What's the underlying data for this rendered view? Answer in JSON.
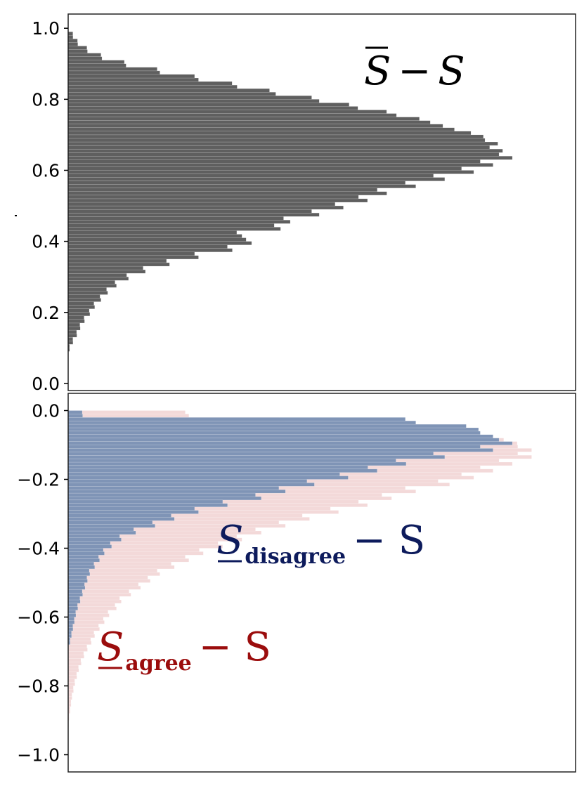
{
  "chart_data": [
    {
      "type": "bar",
      "orientation": "horizontal",
      "annotation": "S̄ − S",
      "ylim": [
        -0.02,
        1.04
      ],
      "yticks": [
        0.0,
        0.2,
        0.4,
        0.6,
        0.8,
        1.0
      ],
      "ytick_labels": [
        "0.0",
        "0.2",
        "0.4",
        "0.6",
        "0.8",
        "1.0"
      ],
      "bin_width": 0.01,
      "series": [
        {
          "color": "#5f5f5f",
          "bins_center": [
            0.1,
            0.12,
            0.14,
            0.16,
            0.18,
            0.2,
            0.22,
            0.24,
            0.26,
            0.28,
            0.3,
            0.32,
            0.34,
            0.36,
            0.38,
            0.4,
            0.42,
            0.44,
            0.46,
            0.48,
            0.5,
            0.52,
            0.54,
            0.56,
            0.58,
            0.6,
            0.62,
            0.64,
            0.66,
            0.68,
            0.7,
            0.72,
            0.74,
            0.76,
            0.78,
            0.8,
            0.82,
            0.84,
            0.86,
            0.88,
            0.9,
            0.92,
            0.94,
            0.96,
            0.98
          ],
          "values": [
            0.3,
            1.0,
            1.8,
            2.5,
            3.4,
            4.5,
            5.5,
            6.8,
            8.2,
            10,
            12.5,
            16,
            21,
            27,
            34,
            38,
            36,
            44,
            46,
            52,
            57,
            62,
            66,
            72,
            78,
            84,
            88,
            92,
            90,
            89,
            86,
            80,
            75,
            68,
            60,
            52,
            43,
            35,
            27,
            19,
            12,
            7,
            4,
            2,
            1
          ]
        }
      ]
    },
    {
      "type": "bar",
      "orientation": "horizontal",
      "ylim": [
        -1.05,
        0.05
      ],
      "yticks": [
        0.0,
        -0.2,
        -0.4,
        -0.6,
        -0.8,
        -1.0
      ],
      "ytick_labels": [
        "0.0",
        "−0.2",
        "−0.4",
        "−0.6",
        "−0.8",
        "−1.0"
      ],
      "bin_width": 0.01,
      "series": [
        {
          "name": "S_agree − S",
          "label_text": "S",
          "label_subscript": "agree",
          "label_rest": "− S",
          "color": "#f3d9d9",
          "label_color": "#9b0d0d",
          "bins_center": [
            -0.01,
            -0.03,
            -0.05,
            -0.07,
            -0.09,
            -0.11,
            -0.13,
            -0.15,
            -0.17,
            -0.19,
            -0.21,
            -0.23,
            -0.25,
            -0.27,
            -0.29,
            -0.31,
            -0.33,
            -0.35,
            -0.37,
            -0.39,
            -0.41,
            -0.43,
            -0.45,
            -0.47,
            -0.49,
            -0.51,
            -0.53,
            -0.55,
            -0.57,
            -0.59,
            -0.61,
            -0.63,
            -0.65,
            -0.67,
            -0.69,
            -0.71,
            -0.73,
            -0.75,
            -0.77,
            -0.79,
            -0.81,
            -0.83,
            -0.85,
            -0.87,
            -0.89,
            -0.91
          ],
          "values": [
            25,
            45,
            75,
            85,
            93,
            96,
            96,
            92,
            88,
            84,
            79,
            72,
            67,
            62,
            56,
            50,
            45,
            40,
            36,
            32,
            28,
            25,
            22,
            19,
            17,
            15,
            13,
            11,
            10,
            8.5,
            7.5,
            6.5,
            5.5,
            4.8,
            4.0,
            3.3,
            2.7,
            2.2,
            1.8,
            1.4,
            1.1,
            0.8,
            0.6,
            0.4,
            0.2,
            0.1
          ]
        },
        {
          "name": "S_disagree − S",
          "label_text": "S",
          "label_subscript": "disagree",
          "label_rest": "− S",
          "color": "#7f94b6",
          "label_color": "#0d1b5c",
          "bins_center": [
            -0.01,
            -0.03,
            -0.05,
            -0.07,
            -0.09,
            -0.11,
            -0.13,
            -0.15,
            -0.17,
            -0.19,
            -0.21,
            -0.23,
            -0.25,
            -0.27,
            -0.29,
            -0.31,
            -0.33,
            -0.35,
            -0.37,
            -0.39,
            -0.41,
            -0.43,
            -0.45,
            -0.47,
            -0.49,
            -0.51,
            -0.53,
            -0.55,
            -0.57,
            -0.59,
            -0.61,
            -0.63,
            -0.65,
            -0.67
          ],
          "values": [
            3,
            72,
            85,
            88,
            92,
            88,
            78,
            70,
            64,
            58,
            51,
            45,
            40,
            33,
            27,
            22,
            18,
            14,
            11,
            9,
            7.5,
            6.5,
            5.5,
            4.5,
            4.0,
            3.5,
            3.0,
            2.5,
            2.0,
            1.6,
            1.3,
            1.0,
            0.7,
            0.4
          ]
        }
      ]
    }
  ]
}
